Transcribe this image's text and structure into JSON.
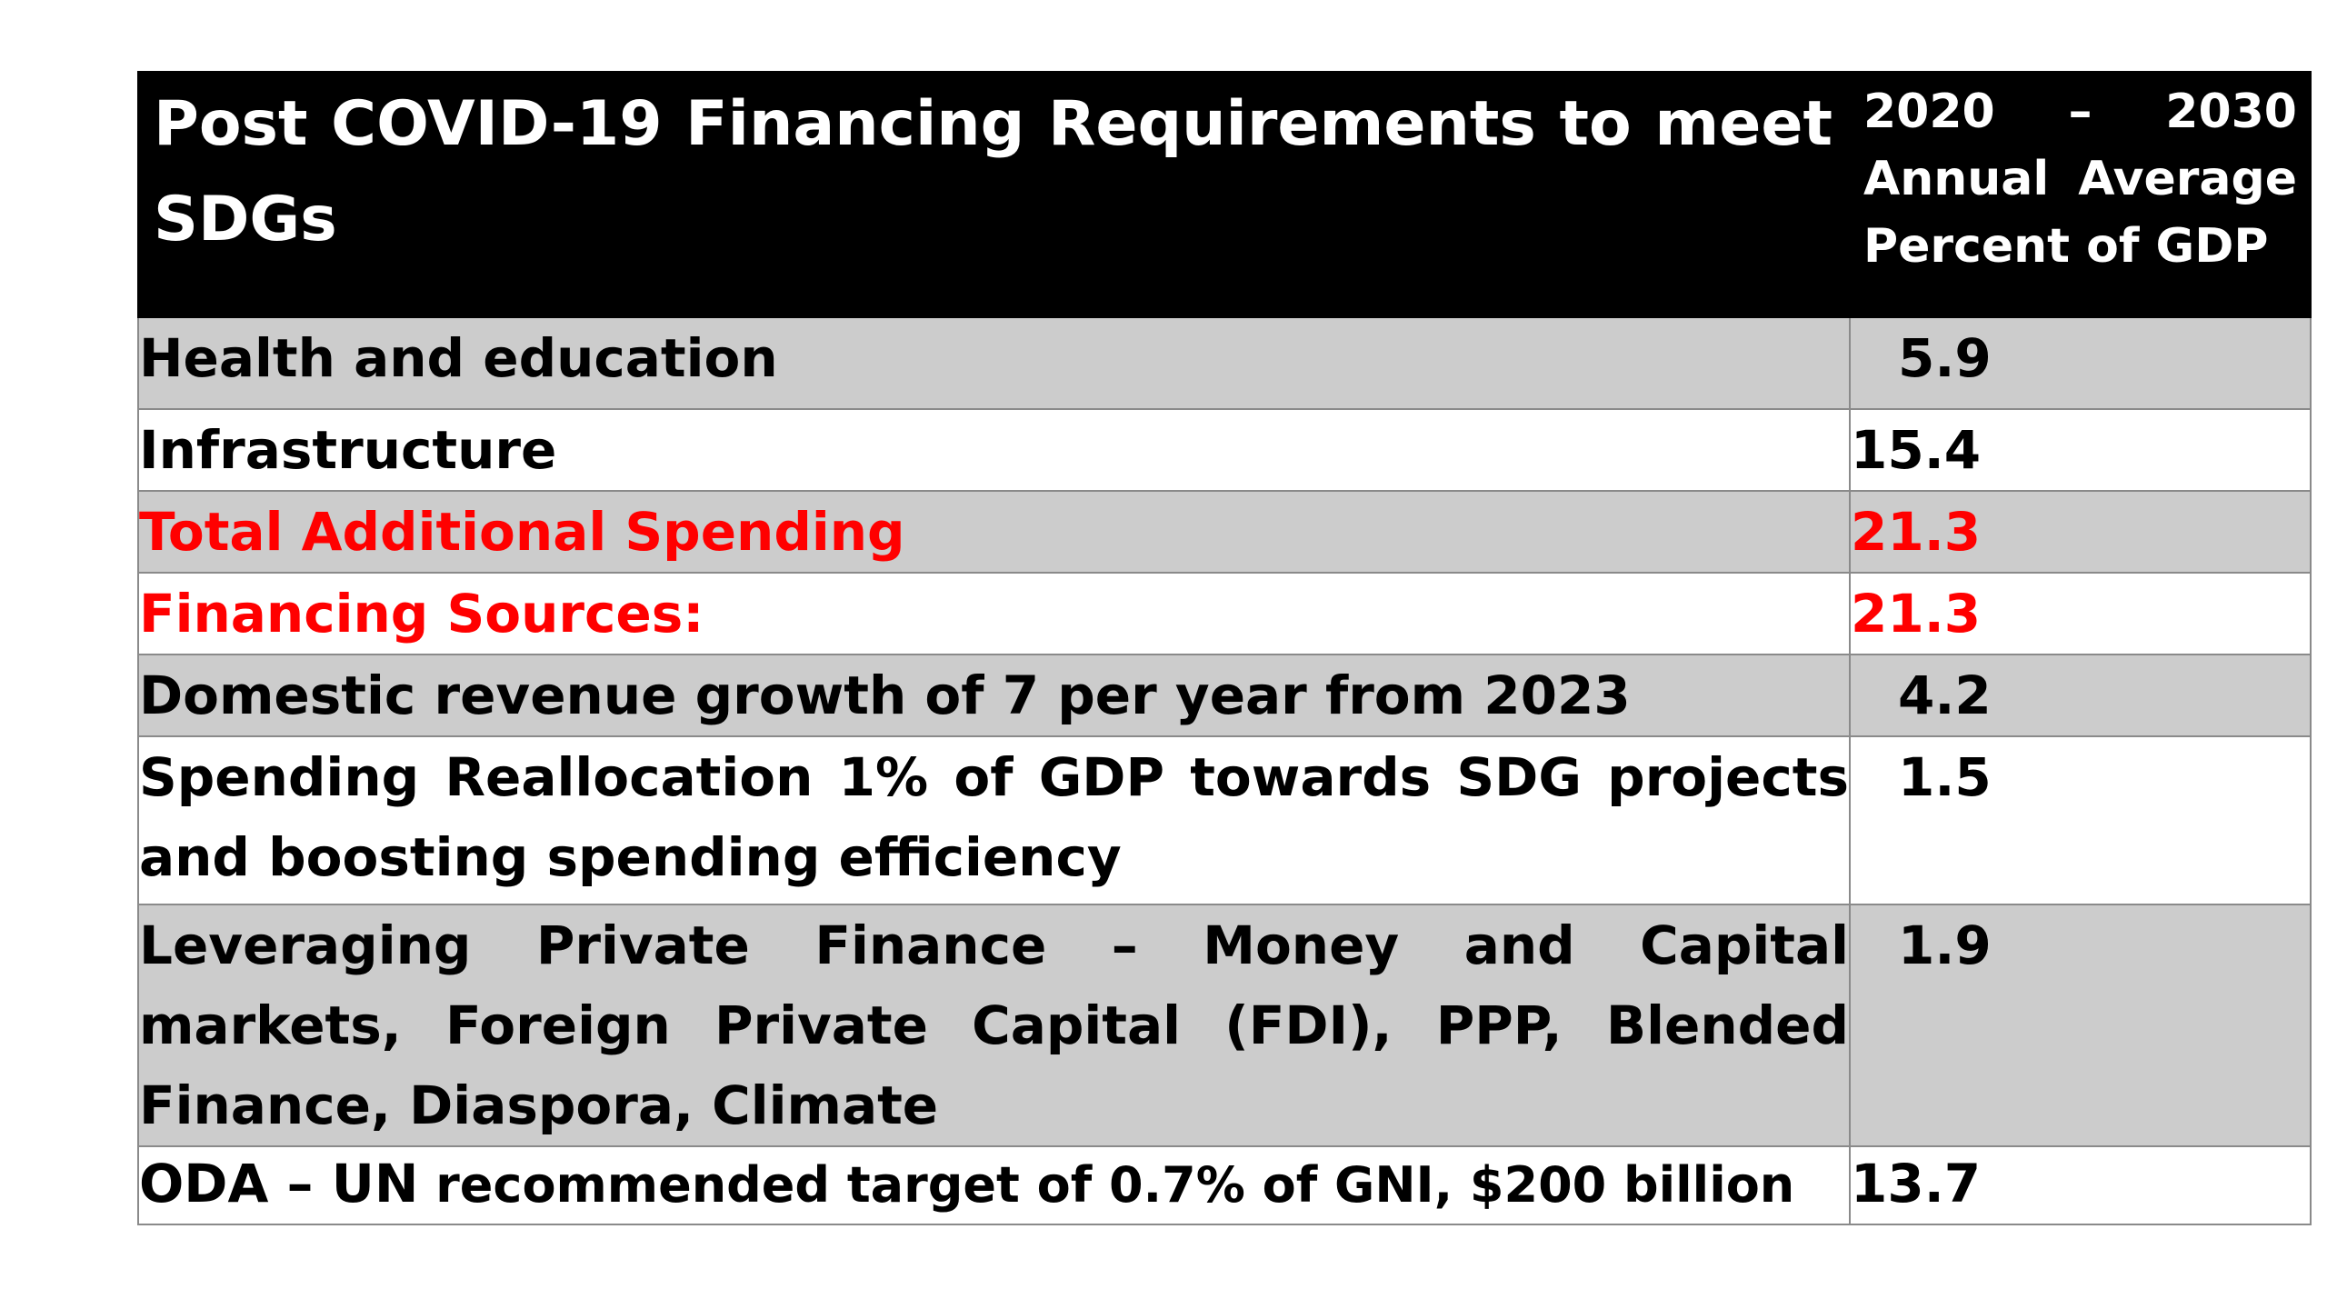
{
  "table": {
    "header": {
      "title": "Post COVID-19 Financing Requirements to meet SDGs",
      "column": "2020 – 2030 Annual Average Percent of GDP"
    },
    "rows": [
      {
        "label": "Health and education",
        "value": "5.9"
      },
      {
        "label": "Infrastructure",
        "value": "15.4"
      },
      {
        "label": "Total Additional Spending",
        "value": "21.3"
      },
      {
        "label": "Financing Sources:",
        "value": "21.3"
      },
      {
        "label": "Domestic revenue growth of 7 per year from 2023",
        "value": "4.2"
      },
      {
        "label": "Spending Reallocation 1% of GDP towards SDG projects and boosting spending efficiency",
        "value": "1.5"
      },
      {
        "label": "Leveraging Private Finance – Money and Capital markets, Foreign Private Capital (FDI), PPP, Blended Finance, Diaspora, Climate",
        "value": "1.9"
      },
      {
        "label_bold": "ODA – UN",
        "label_rest": " recommended target of 0.7% of GNI, $200 billion",
        "value": "13.7"
      }
    ],
    "colors": {
      "header_bg": "#000000",
      "header_text": "#ffffff",
      "band_gray": "#cccccc",
      "highlight_red": "#ff0000"
    }
  }
}
